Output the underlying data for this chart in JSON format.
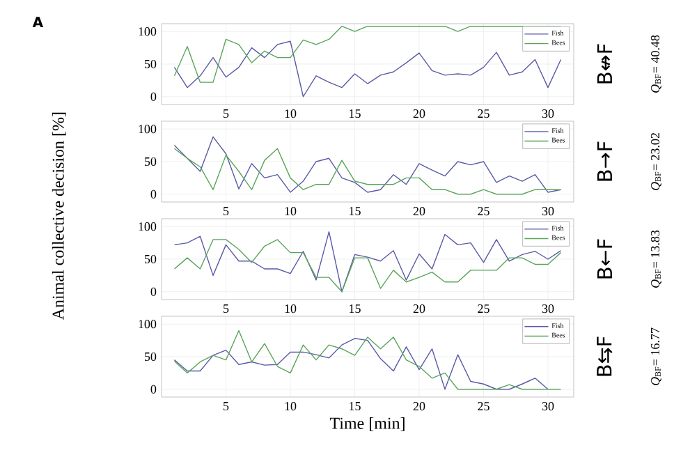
{
  "chart_data": [
    {
      "type": "line",
      "annotations": [
        "A",
        "B↮F",
        "*Q*$_{BF}$= 40.48"
      ],
      "x": [
        1,
        2,
        3,
        4,
        5,
        6,
        7,
        8,
        9,
        10,
        11,
        12,
        13,
        14,
        15,
        16,
        17,
        18,
        19,
        20,
        21,
        22,
        23,
        24,
        25,
        26,
        27,
        28,
        29,
        30,
        31
      ],
      "xlim": [
        0,
        32
      ],
      "xticks": [
        5,
        10,
        15,
        20,
        25,
        30
      ],
      "ylim": [
        -12,
        112
      ],
      "yticks": [
        0,
        50,
        100
      ],
      "grid": true,
      "legend": "top right",
      "series": [
        {
          "name": "Fish",
          "color": "#5a5aa8",
          "values": [
            45,
            14,
            32,
            60,
            30,
            45,
            75,
            60,
            80,
            85,
            0,
            32,
            22,
            14,
            35,
            20,
            33,
            38,
            52,
            67,
            40,
            33,
            35,
            33,
            45,
            68,
            33,
            38,
            57,
            14,
            57
          ]
        },
        {
          "name": "Bees",
          "color": "#5aa55a",
          "values": [
            32,
            77,
            22,
            22,
            88,
            80,
            52,
            70,
            60,
            60,
            87,
            80,
            88,
            108,
            100,
            108,
            108,
            108,
            108,
            108,
            108,
            108,
            100,
            108,
            108,
            108,
            108,
            108,
            108,
            108,
            108
          ]
        }
      ]
    },
    {
      "type": "line",
      "annotations": [
        "B→F",
        "*Q*$_{BF}$= 23.02"
      ],
      "ylabel": "Animal collective decision [%]",
      "x": [
        1,
        2,
        3,
        4,
        5,
        6,
        7,
        8,
        9,
        10,
        11,
        12,
        13,
        14,
        15,
        16,
        17,
        18,
        19,
        20,
        21,
        22,
        23,
        24,
        25,
        26,
        27,
        28,
        29,
        30,
        31
      ],
      "xlim": [
        0,
        32
      ],
      "xticks": [
        5,
        10,
        15,
        20,
        25,
        30
      ],
      "ylim": [
        -12,
        112
      ],
      "yticks": [
        0,
        50,
        100
      ],
      "grid": true,
      "legend": "top right",
      "series": [
        {
          "name": "Fish",
          "color": "#5a5aa8",
          "values": [
            75,
            55,
            35,
            88,
            62,
            8,
            47,
            25,
            30,
            3,
            20,
            50,
            55,
            25,
            18,
            3,
            7,
            30,
            15,
            47,
            37,
            28,
            50,
            45,
            50,
            18,
            28,
            20,
            30,
            3,
            7
          ]
        },
        {
          "name": "Bees",
          "color": "#5aa55a",
          "values": [
            70,
            55,
            42,
            7,
            60,
            35,
            7,
            52,
            70,
            25,
            7,
            15,
            15,
            52,
            20,
            15,
            15,
            15,
            25,
            25,
            7,
            7,
            0,
            0,
            7,
            0,
            0,
            0,
            7,
            7,
            7
          ]
        }
      ]
    },
    {
      "type": "line",
      "annotations": [
        "B←F",
        "*Q*$_{BF}$= 13.83"
      ],
      "x": [
        1,
        2,
        3,
        4,
        5,
        6,
        7,
        8,
        9,
        10,
        11,
        12,
        13,
        14,
        15,
        16,
        17,
        18,
        19,
        20,
        21,
        22,
        23,
        24,
        25,
        26,
        27,
        28,
        29,
        30,
        31
      ],
      "xlim": [
        0,
        32
      ],
      "xticks": [
        5,
        10,
        15,
        20,
        25,
        30
      ],
      "ylim": [
        -12,
        112
      ],
      "yticks": [
        0,
        50,
        100
      ],
      "grid": true,
      "legend": "top right",
      "series": [
        {
          "name": "Fish",
          "color": "#5a5aa8",
          "values": [
            72,
            75,
            85,
            25,
            72,
            47,
            47,
            35,
            35,
            28,
            62,
            18,
            92,
            0,
            57,
            53,
            47,
            63,
            18,
            58,
            35,
            88,
            72,
            75,
            45,
            80,
            47,
            57,
            62,
            50,
            63
          ]
        },
        {
          "name": "Bees",
          "color": "#5aa55a",
          "values": [
            35,
            52,
            35,
            80,
            80,
            65,
            45,
            70,
            80,
            60,
            60,
            22,
            22,
            0,
            52,
            52,
            5,
            33,
            15,
            22,
            30,
            15,
            15,
            33,
            33,
            33,
            52,
            52,
            42,
            42,
            60
          ]
        }
      ]
    },
    {
      "type": "line",
      "annotations": [
        "B⇆F",
        "*Q*$_{BF}$= 16.77"
      ],
      "xlabel": "Time [min]",
      "x": [
        1,
        2,
        3,
        4,
        5,
        6,
        7,
        8,
        9,
        10,
        11,
        12,
        13,
        14,
        15,
        16,
        17,
        18,
        19,
        20,
        21,
        22,
        23,
        24,
        25,
        26,
        27,
        28,
        29,
        30,
        31
      ],
      "xlim": [
        0,
        32
      ],
      "xticks": [
        5,
        10,
        15,
        20,
        25,
        30
      ],
      "ylim": [
        -12,
        112
      ],
      "yticks": [
        0,
        50,
        100
      ],
      "grid": true,
      "legend": "top right",
      "series": [
        {
          "name": "Fish",
          "color": "#5a5aa8",
          "values": [
            45,
            28,
            28,
            52,
            60,
            38,
            42,
            37,
            38,
            57,
            57,
            53,
            48,
            68,
            78,
            75,
            47,
            28,
            65,
            30,
            62,
            0,
            53,
            12,
            8,
            0,
            0,
            8,
            17,
            0,
            null
          ]
        },
        {
          "name": "Bees",
          "color": "#5aa55a",
          "values": [
            43,
            25,
            42,
            52,
            45,
            90,
            42,
            70,
            35,
            25,
            68,
            45,
            68,
            62,
            52,
            80,
            62,
            80,
            45,
            35,
            17,
            25,
            0,
            0,
            0,
            0,
            7,
            0,
            0,
            0,
            0
          ]
        }
      ]
    }
  ]
}
